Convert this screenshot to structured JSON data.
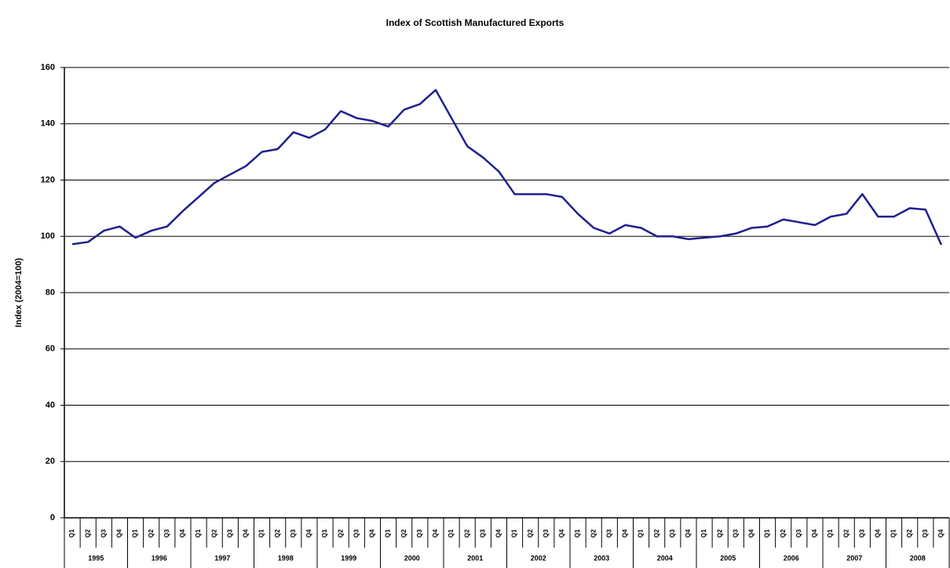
{
  "chart_data": {
    "type": "line",
    "title": "Index of Scottish Manufactured Exports",
    "y_label": "Index (2004=100)",
    "categories": [
      "Q1",
      "Q2",
      "Q3",
      "Q4",
      "Q1",
      "Q2",
      "Q3",
      "Q4",
      "Q1",
      "Q2",
      "Q3",
      "Q4",
      "Q1",
      "Q2",
      "Q3",
      "Q4",
      "Q1",
      "Q2",
      "Q3",
      "Q4",
      "Q1",
      "Q2",
      "Q3",
      "Q4",
      "Q1",
      "Q2",
      "Q3",
      "Q4",
      "Q1",
      "Q2",
      "Q3",
      "Q4",
      "Q1",
      "Q2",
      "Q3",
      "Q4",
      "Q1",
      "Q2",
      "Q3",
      "Q4",
      "Q1",
      "Q2",
      "Q3",
      "Q4",
      "Q1",
      "Q2",
      "Q3",
      "Q4",
      "Q1",
      "Q2",
      "Q3",
      "Q4",
      "Q1",
      "Q2",
      "Q3",
      "Q4"
    ],
    "year_groups": [
      "1995",
      "1996",
      "1997",
      "1998",
      "1999",
      "2000",
      "2001",
      "2002",
      "2003",
      "2004",
      "2005",
      "2006",
      "2007",
      "2008"
    ],
    "series": [
      {
        "name": "Index",
        "color": "#1f1f8f",
        "values": [
          97.2,
          98,
          102,
          103.5,
          99.5,
          102,
          103.5,
          109,
          114,
          119,
          122,
          125,
          130,
          131,
          137,
          135,
          138,
          144.5,
          142,
          141,
          139,
          145,
          147,
          152,
          142,
          132,
          128,
          123,
          115,
          115,
          115,
          114,
          108,
          103,
          101,
          104,
          103,
          100,
          100,
          99,
          99.5,
          100,
          101,
          103,
          103.5,
          106,
          105,
          104,
          107,
          108,
          115,
          107,
          107,
          110,
          109.5,
          97
        ]
      }
    ],
    "ylim": [
      0,
      160
    ],
    "yticks": [
      0,
      20,
      40,
      60,
      80,
      100,
      120,
      140,
      160
    ],
    "grid": true
  }
}
